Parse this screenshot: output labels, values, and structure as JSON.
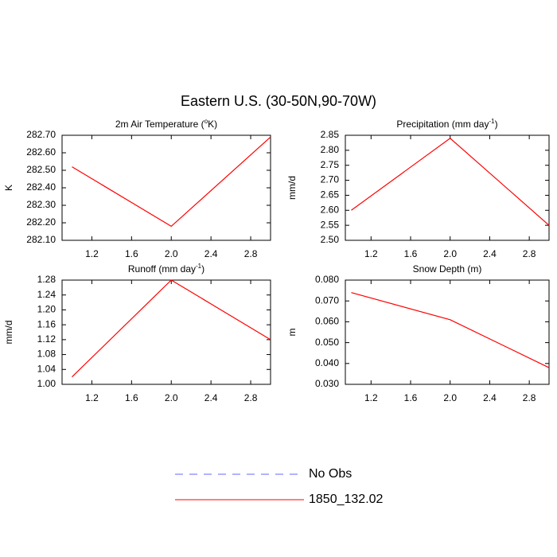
{
  "title": "Eastern U.S. (30-50N,90-70W)",
  "legend": [
    {
      "name": "No Obs",
      "color": "#6666ff",
      "dashed": true
    },
    {
      "name": "1850_132.02",
      "color": "#ff0000",
      "dashed": false
    }
  ],
  "chart_data": [
    {
      "type": "line",
      "title": [
        {
          "text": "2m Air Temperature ("
        },
        {
          "text": "o",
          "sup": true
        },
        {
          "text": "K)"
        }
      ],
      "y_label": "K",
      "x": [
        1,
        2,
        3
      ],
      "values": [
        282.52,
        282.18,
        282.69
      ],
      "color": "#ff0000",
      "xlim": [
        0.9,
        3.0
      ],
      "xticks": [
        1.2,
        1.6,
        {
          "value": 2,
          "label": "2.0"
        },
        2.4,
        2.8
      ],
      "ylim": [
        282.1,
        282.7
      ],
      "yticks": [
        {
          "value": 282.1,
          "label": "282.10"
        },
        {
          "value": 282.2,
          "label": "282.20"
        },
        {
          "value": 282.3,
          "label": "282.30"
        },
        {
          "value": 282.4,
          "label": "282.40"
        },
        {
          "value": 282.5,
          "label": "282.50"
        },
        {
          "value": 282.6,
          "label": "282.60"
        },
        {
          "value": 282.7,
          "label": "282.70"
        }
      ]
    },
    {
      "type": "line",
      "title": [
        {
          "text": "Precipitation (mm day"
        },
        {
          "text": "-1",
          "sup": true
        },
        {
          "text": ")"
        }
      ],
      "y_label": "mm/d",
      "x": [
        1,
        2,
        3
      ],
      "values": [
        2.6,
        2.84,
        2.55
      ],
      "color": "#ff0000",
      "xlim": [
        0.94,
        3.0
      ],
      "xticks": [
        1.2,
        1.6,
        {
          "value": 2,
          "label": "2.0"
        },
        2.4,
        2.8
      ],
      "ylim": [
        2.5,
        2.85
      ],
      "yticks": [
        {
          "value": 2.5,
          "label": "2.50"
        },
        2.55,
        {
          "value": 2.6,
          "label": "2.60"
        },
        2.65,
        {
          "value": 2.7,
          "label": "2.70"
        },
        2.75,
        {
          "value": 2.8,
          "label": "2.80"
        },
        2.85
      ]
    },
    {
      "type": "line",
      "title": [
        {
          "text": "Runoff (mm day"
        },
        {
          "text": "-1",
          "sup": true
        },
        {
          "text": ")"
        }
      ],
      "y_label": "mm/d",
      "x": [
        1,
        2,
        3
      ],
      "values": [
        1.02,
        1.28,
        1.12
      ],
      "color": "#ff0000",
      "xlim": [
        0.9,
        3.0
      ],
      "xticks": [
        1.2,
        1.6,
        {
          "value": 2,
          "label": "2.0"
        },
        2.4,
        2.8
      ],
      "ylim": [
        1.0,
        1.28
      ],
      "yticks": [
        {
          "value": 1.0,
          "label": "1.00"
        },
        1.04,
        1.08,
        1.12,
        1.16,
        {
          "value": 1.2,
          "label": "1.20"
        },
        1.24,
        1.28
      ]
    },
    {
      "type": "line",
      "title": [
        {
          "text": "Snow Depth (m)"
        }
      ],
      "y_label": "m",
      "x": [
        1,
        2,
        3
      ],
      "values": [
        0.074,
        0.061,
        0.038
      ],
      "color": "#ff0000",
      "xlim": [
        0.94,
        3.0
      ],
      "xticks": [
        1.2,
        1.6,
        {
          "value": 2,
          "label": "2.0"
        },
        2.4,
        2.8
      ],
      "ylim": [
        0.03,
        0.08
      ],
      "yticks": [
        {
          "value": 0.03,
          "label": "0.030"
        },
        {
          "value": 0.04,
          "label": "0.040"
        },
        {
          "value": 0.05,
          "label": "0.050"
        },
        {
          "value": 0.06,
          "label": "0.060"
        },
        {
          "value": 0.07,
          "label": "0.070"
        },
        {
          "value": 0.08,
          "label": "0.080"
        }
      ]
    }
  ]
}
